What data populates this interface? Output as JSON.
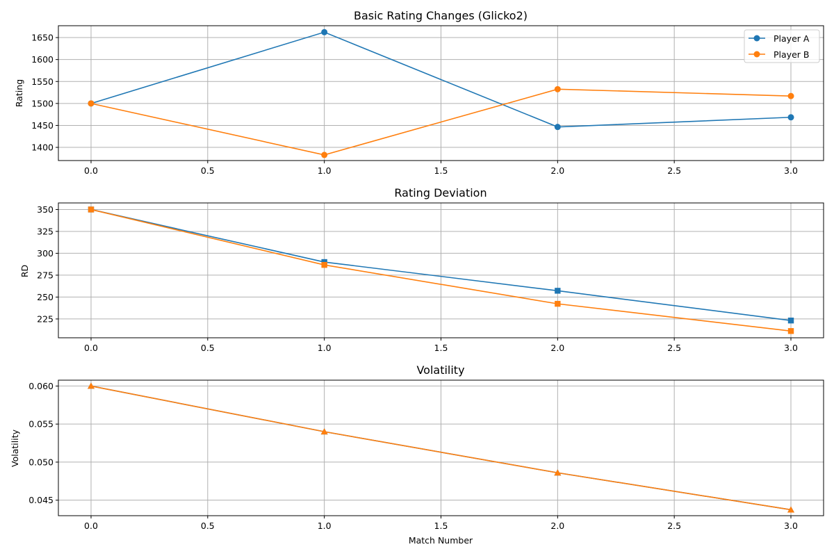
{
  "colors": {
    "player_a": "#1f77b4",
    "player_b": "#ff7f0e",
    "grid": "#b0b0b0",
    "axis": "#000000"
  },
  "chart_data": [
    {
      "type": "line",
      "title": "Basic Rating Changes (Glicko2)",
      "xlabel": "",
      "ylabel": "Rating",
      "x": [
        0,
        1,
        2,
        3
      ],
      "xlim": [
        -0.14,
        3.14
      ],
      "ylim": [
        1370,
        1677
      ],
      "xticks": [
        "0.0",
        "0.5",
        "1.0",
        "1.5",
        "2.0",
        "2.5",
        "3.0"
      ],
      "xtick_values": [
        0,
        0.5,
        1,
        1.5,
        2,
        2.5,
        3
      ],
      "yticks": [
        "1400",
        "1450",
        "1500",
        "1550",
        "1600",
        "1650"
      ],
      "ytick_values": [
        1400,
        1450,
        1500,
        1550,
        1600,
        1650
      ],
      "grid": true,
      "legend": "upper right",
      "marker": "circle",
      "series": [
        {
          "name": "Player A",
          "values": [
            1500,
            1662.3,
            1446.5,
            1468.5
          ],
          "color": "#1f77b4"
        },
        {
          "name": "Player B",
          "values": [
            1500,
            1382.8,
            1532.5,
            1516.9
          ],
          "color": "#ff7f0e"
        }
      ]
    },
    {
      "type": "line",
      "title": "Rating Deviation",
      "xlabel": "",
      "ylabel": "RD",
      "x": [
        0,
        1,
        2,
        3
      ],
      "xlim": [
        -0.14,
        3.14
      ],
      "ylim": [
        203.5,
        357.5
      ],
      "xticks": [
        "0.0",
        "0.5",
        "1.0",
        "1.5",
        "2.0",
        "2.5",
        "3.0"
      ],
      "xtick_values": [
        0,
        0.5,
        1,
        1.5,
        2,
        2.5,
        3
      ],
      "yticks": [
        "225",
        "250",
        "275",
        "300",
        "325",
        "350"
      ],
      "ytick_values": [
        225,
        250,
        275,
        300,
        325,
        350
      ],
      "grid": true,
      "marker": "square",
      "series": [
        {
          "values": [
            350,
            290,
            257.2,
            223.2
          ],
          "color": "#1f77b4"
        },
        {
          "values": [
            350,
            286.7,
            242.3,
            211.2
          ],
          "color": "#ff7f0e"
        }
      ]
    },
    {
      "type": "line",
      "title": "Volatility",
      "xlabel": "Match Number",
      "ylabel": "Volatility",
      "x": [
        0,
        1,
        2,
        3
      ],
      "xlim": [
        -0.14,
        3.14
      ],
      "ylim": [
        0.04296,
        0.06077
      ],
      "xticks": [
        "0.0",
        "0.5",
        "1.0",
        "1.5",
        "2.0",
        "2.5",
        "3.0"
      ],
      "xtick_values": [
        0,
        0.5,
        1,
        1.5,
        2,
        2.5,
        3
      ],
      "yticks": [
        "0.045",
        "0.050",
        "0.055",
        "0.060"
      ],
      "ytick_values": [
        0.045,
        0.05,
        0.055,
        0.06
      ],
      "grid": true,
      "marker": "triangle",
      "series": [
        {
          "values": [
            0.06,
            0.054,
            0.0486,
            0.04374
          ],
          "color": "#1f77b4"
        },
        {
          "values": [
            0.06,
            0.054,
            0.0486,
            0.04374
          ],
          "color": "#ff7f0e"
        }
      ]
    }
  ]
}
